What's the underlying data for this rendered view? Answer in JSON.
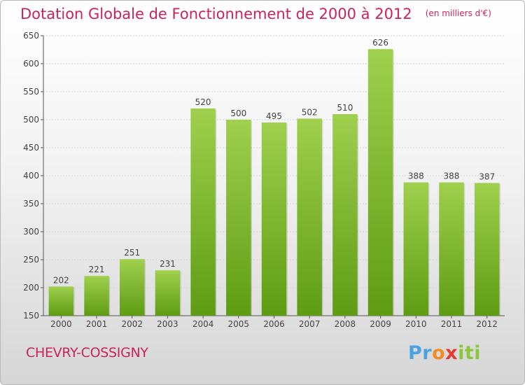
{
  "chart_data": {
    "type": "bar",
    "title": "Dotation Globale de Fonctionnement de 2000 à 2012",
    "subtitle": "(en milliers d'€)",
    "xlabel": "",
    "ylabel": "",
    "categories": [
      "2000",
      "2001",
      "2002",
      "2003",
      "2004",
      "2005",
      "2006",
      "2007",
      "2008",
      "2009",
      "2010",
      "2011",
      "2012"
    ],
    "values": [
      202,
      221,
      251,
      231,
      520,
      500,
      495,
      502,
      510,
      626,
      388,
      388,
      387
    ],
    "ylim": [
      150,
      650
    ],
    "yticks": [
      150,
      200,
      250,
      300,
      350,
      400,
      450,
      500,
      550,
      600,
      650
    ],
    "grid": true,
    "bar_color_top": "#9fd04e",
    "bar_color_bottom": "#5e9c13"
  },
  "footer": {
    "city": "CHEVRY-COSSIGNY",
    "logo": {
      "p": "Pr",
      "o": "o",
      "x": "x",
      "iti": "iti"
    }
  }
}
